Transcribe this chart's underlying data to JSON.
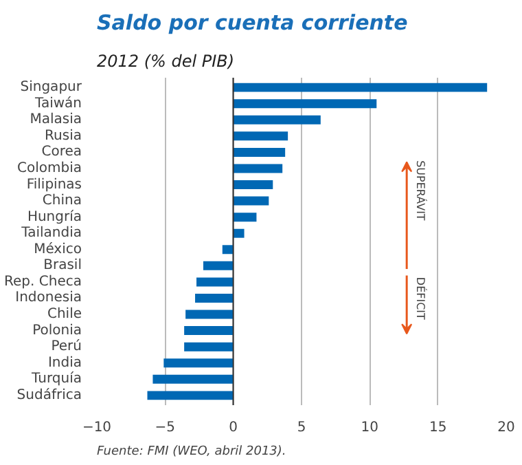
{
  "chart_data": {
    "type": "bar",
    "orientation": "horizontal",
    "title": "Saldo por cuenta corriente",
    "subtitle": "2012 (% del PIB)",
    "categories": [
      "Singapur",
      "Taiwán",
      "Malasia",
      "Rusia",
      "Corea",
      "Colombia",
      "Filipinas",
      "China",
      "Hungría",
      "Tailandia",
      "México",
      "Brasil",
      "Rep. Checa",
      "Indonesia",
      "Chile",
      "Polonia",
      "Perú",
      "India",
      "Turquía",
      "Sudáfrica"
    ],
    "values": [
      18.6,
      10.5,
      6.4,
      4.0,
      3.8,
      3.6,
      2.9,
      2.6,
      1.7,
      0.8,
      -0.8,
      -2.2,
      -2.7,
      -2.8,
      -3.5,
      -3.6,
      -3.6,
      -5.1,
      -5.9,
      -6.3
    ],
    "color": "#0068b4",
    "xlim": [
      -10,
      20
    ],
    "xticks": [
      -10,
      -5,
      0,
      5,
      10,
      15,
      20
    ],
    "grid": "x",
    "annotations": [
      "SUPERÁVIT",
      "DÉFICIT",
      "Fuente: FMI (WEO, abril 2013)."
    ]
  }
}
